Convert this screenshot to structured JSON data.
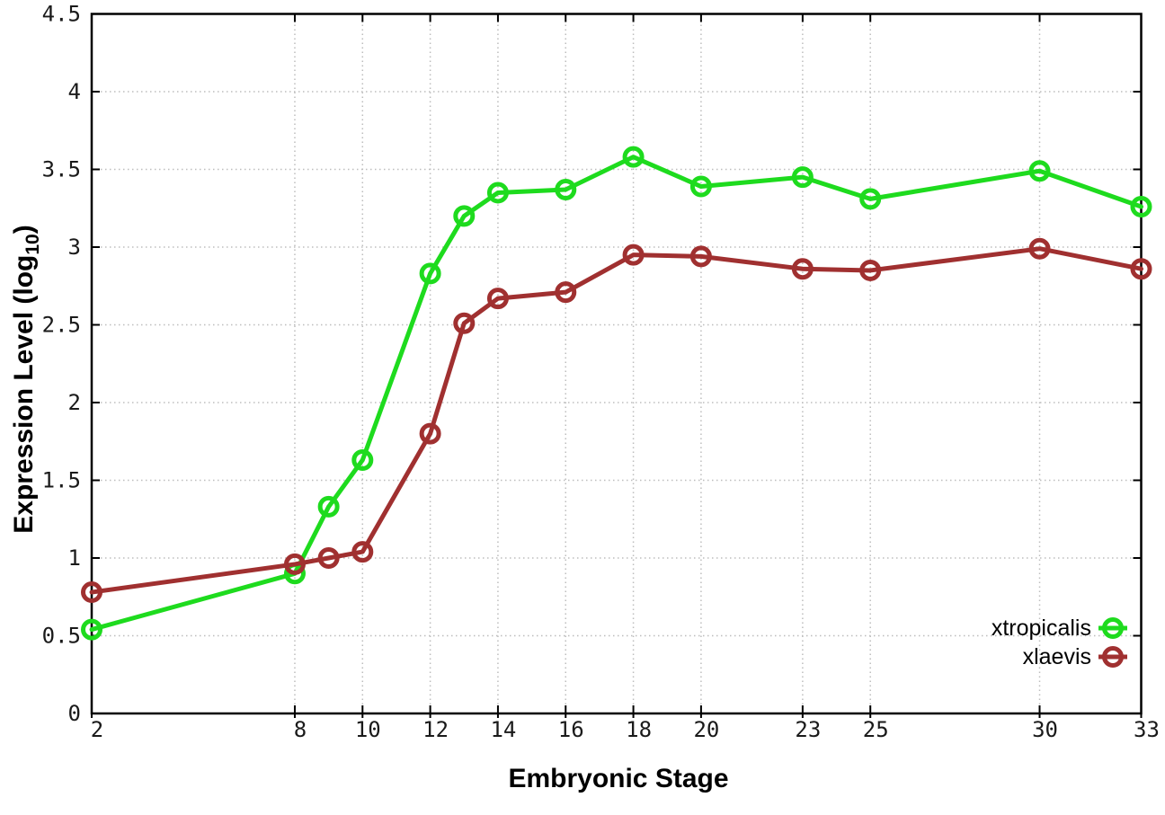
{
  "chart_data": {
    "type": "line",
    "title": "",
    "xlabel": "Embryonic Stage",
    "ylabel": {
      "prefix": "Expression Level (log",
      "subscript": "10",
      "suffix": ")"
    },
    "x": [
      2,
      8,
      9,
      10,
      12,
      13,
      14,
      16,
      18,
      20,
      23,
      25,
      30,
      33
    ],
    "series": [
      {
        "name": "xtropicalis",
        "color": "#1edb1e",
        "marker": "open-circle",
        "values": [
          0.54,
          0.9,
          1.33,
          1.63,
          2.83,
          3.2,
          3.35,
          3.37,
          3.58,
          3.39,
          3.45,
          3.31,
          3.49,
          3.26
        ]
      },
      {
        "name": "xlaevis",
        "color": "#a03030",
        "marker": "open-circle",
        "values": [
          0.78,
          0.96,
          1.0,
          1.04,
          1.8,
          2.51,
          2.67,
          2.71,
          2.95,
          2.94,
          2.86,
          2.85,
          2.99,
          2.86
        ]
      }
    ],
    "xticks": [
      2,
      8,
      10,
      12,
      14,
      16,
      18,
      20,
      23,
      25,
      30,
      33
    ],
    "yticks": [
      0,
      0.5,
      1,
      1.5,
      2,
      2.5,
      3,
      3.5,
      4,
      4.5
    ],
    "xlim": [
      2,
      33
    ],
    "ylim": [
      0,
      4.5
    ],
    "grid": true,
    "legend_position": "inside-lower-right",
    "colors": {
      "grid": "#bdbdbd",
      "axis": "#000000",
      "tick_label": "#1a1a1a",
      "background": "#ffffff"
    }
  }
}
